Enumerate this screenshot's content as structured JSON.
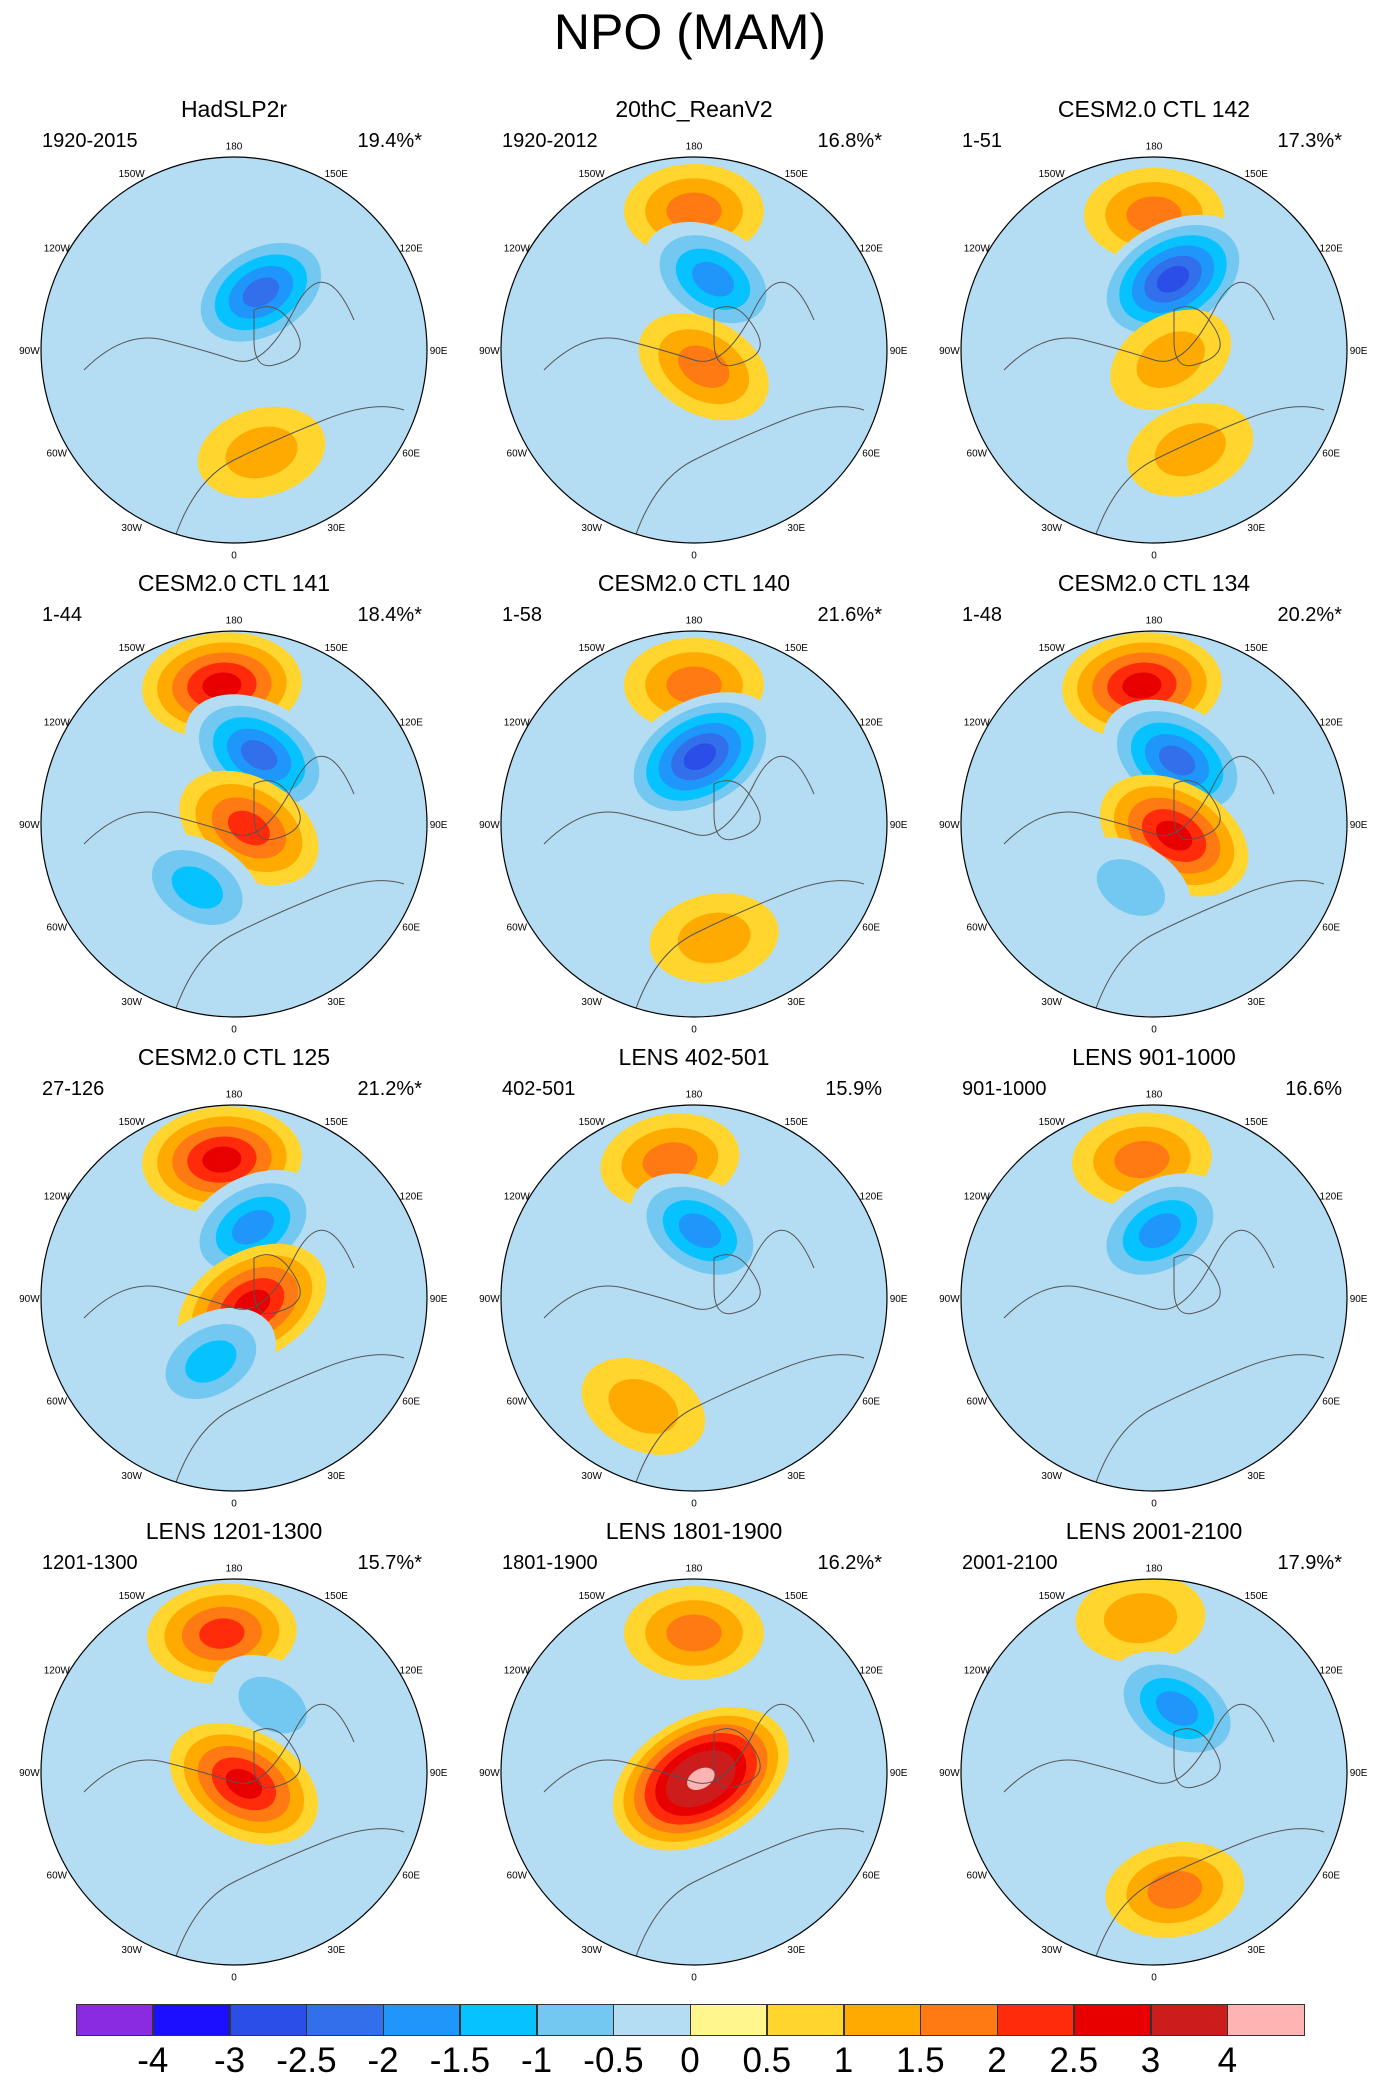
{
  "title": "NPO (MAM)",
  "panels": [
    {
      "title": "HadSLP2r",
      "period": "1920-2015",
      "variance": "19.4%*",
      "blobs": [
        {
          "lon": 155,
          "r": 0.33,
          "v": -2.5
        },
        {
          "lon": 15,
          "r": 0.55,
          "v": 1
        }
      ]
    },
    {
      "title": "20thC_ReanV2",
      "period": "1920-2012",
      "variance": "16.8%*",
      "blobs": [
        {
          "lon": 180,
          "r": 0.72,
          "v": 1.5
        },
        {
          "lon": 165,
          "r": 0.38,
          "v": -2
        },
        {
          "lon": 30,
          "r": 0.1,
          "v": 1.5
        }
      ]
    },
    {
      "title": "CESM2.0 CTL 142",
      "period": "1-51",
      "variance": "17.3%*",
      "blobs": [
        {
          "lon": 180,
          "r": 0.7,
          "v": 1.5
        },
        {
          "lon": 165,
          "r": 0.38,
          "v": -3
        },
        {
          "lon": 20,
          "r": 0.55,
          "v": 1
        },
        {
          "lon": 60,
          "r": 0.1,
          "v": 1
        }
      ]
    },
    {
      "title": "CESM2.0 CTL 141",
      "period": "1-44",
      "variance": "18.4%*",
      "blobs": [
        {
          "lon": 185,
          "r": 0.72,
          "v": 2.5
        },
        {
          "lon": 160,
          "r": 0.38,
          "v": -2.5
        },
        {
          "lon": 75,
          "r": 0.08,
          "v": 2
        },
        {
          "lon": 330,
          "r": 0.38,
          "v": -1.5
        }
      ]
    },
    {
      "title": "CESM2.0 CTL 140",
      "period": "1-58",
      "variance": "21.6%*",
      "blobs": [
        {
          "lon": 180,
          "r": 0.72,
          "v": 1.5
        },
        {
          "lon": 175,
          "r": 0.35,
          "v": -3
        },
        {
          "lon": 10,
          "r": 0.6,
          "v": 1
        }
      ]
    },
    {
      "title": "CESM2.0 CTL 134",
      "period": "1-48",
      "variance": "20.2%*",
      "blobs": [
        {
          "lon": 185,
          "r": 0.72,
          "v": 2.5
        },
        {
          "lon": 160,
          "r": 0.35,
          "v": -2.5
        },
        {
          "lon": 60,
          "r": 0.12,
          "v": 2.5
        },
        {
          "lon": 340,
          "r": 0.35,
          "v": -1
        }
      ]
    },
    {
      "title": "CESM2.0 CTL 125",
      "period": "27-126",
      "variance": "21.2%*",
      "blobs": [
        {
          "lon": 185,
          "r": 0.72,
          "v": 2.5
        },
        {
          "lon": 165,
          "r": 0.38,
          "v": -2
        },
        {
          "lon": 70,
          "r": 0.1,
          "v": 2.5
        },
        {
          "lon": 340,
          "r": 0.35,
          "v": -1.5
        }
      ]
    },
    {
      "title": "LENS 402-501",
      "period": "402-501",
      "variance": "15.9%",
      "blobs": [
        {
          "lon": 190,
          "r": 0.72,
          "v": 1.5
        },
        {
          "lon": 175,
          "r": 0.35,
          "v": -2
        },
        {
          "lon": 335,
          "r": 0.62,
          "v": 1
        }
      ]
    },
    {
      "title": "LENS 901-1000",
      "period": "901-1000",
      "variance": "16.6%",
      "blobs": [
        {
          "lon": 185,
          "r": 0.72,
          "v": 1.5
        },
        {
          "lon": 175,
          "r": 0.35,
          "v": -2
        }
      ]
    },
    {
      "title": "LENS 1201-1300",
      "period": "1201-1300",
      "variance": "15.7%*",
      "blobs": [
        {
          "lon": 185,
          "r": 0.72,
          "v": 2
        },
        {
          "lon": 150,
          "r": 0.4,
          "v": -1
        },
        {
          "lon": 40,
          "r": 0.08,
          "v": 2.5
        }
      ]
    },
    {
      "title": "LENS 1801-1900",
      "period": "1801-1900",
      "variance": "16.2%*",
      "blobs": [
        {
          "lon": 180,
          "r": 0.72,
          "v": 1.5
        },
        {
          "lon": 45,
          "r": 0.05,
          "v": 4
        }
      ]
    },
    {
      "title": "LENS 2001-2100",
      "period": "2001-2100",
      "variance": "17.9%*",
      "blobs": [
        {
          "lon": 185,
          "r": 0.8,
          "v": 1
        },
        {
          "lon": 160,
          "r": 0.35,
          "v": -2
        },
        {
          "lon": 10,
          "r": 0.62,
          "v": 1.5
        }
      ]
    }
  ],
  "lon_labels": [
    "180",
    "150E",
    "120E",
    "90E",
    "60E",
    "30E",
    "0",
    "30W",
    "60W",
    "90W",
    "120W",
    "150W"
  ],
  "colorbar": {
    "colors": [
      "#8a2be2",
      "#1a0fff",
      "#2b4ee8",
      "#3170ea",
      "#1e96fa",
      "#06c3ff",
      "#72c8f0",
      "#b4dcf2",
      "#fff78e",
      "#ffd52e",
      "#ffaa00",
      "#ff7a12",
      "#ff2b0a",
      "#e80000",
      "#cc1c1c",
      "#ffb4b4"
    ],
    "labels": [
      "-4",
      "-3",
      "-2.5",
      "-2",
      "-1.5",
      "-1",
      "-0.5",
      "0",
      "0.5",
      "1",
      "1.5",
      "2",
      "2.5",
      "3",
      "4"
    ]
  }
}
